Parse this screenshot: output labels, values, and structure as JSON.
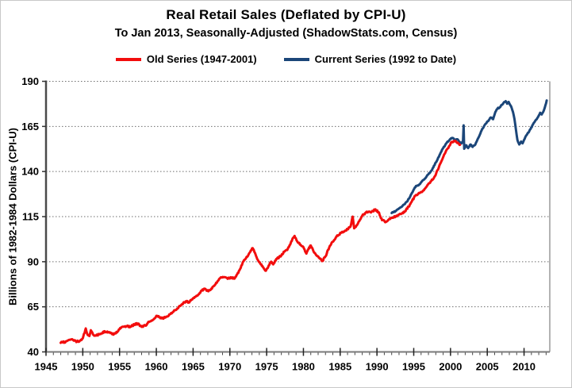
{
  "header": {
    "title": "Real Retail Sales (Deflated by CPI-U)",
    "subtitle": "To Jan 2013, Seasonally-Adjusted (ShadowStats.com, Census)"
  },
  "legend": {
    "items": [
      {
        "label": "Old Series (1947-2001)",
        "color": "#f20d0d"
      },
      {
        "label": "Current Series (1992 to Date)",
        "color": "#1b4679"
      }
    ]
  },
  "chart_data": {
    "type": "line",
    "title": "Real Retail Sales (Deflated by CPI-U)",
    "subtitle": "To Jan 2013, Seasonally-Adjusted (ShadowStats.com, Census)",
    "xlabel": "",
    "ylabel": "Billions of 1982-1984 Dollars (CPI-U)",
    "xlim": [
      1945,
      2013.5
    ],
    "ylim": [
      40,
      190
    ],
    "xticks": [
      1945,
      1950,
      1955,
      1960,
      1965,
      1970,
      1975,
      1980,
      1985,
      1990,
      1995,
      2000,
      2005,
      2010
    ],
    "yticks": [
      40,
      65,
      90,
      115,
      140,
      165,
      190
    ],
    "grid": "horizontal-dotted",
    "legend_position": "top",
    "series": [
      {
        "name": "Current Series (1992 to Date)",
        "color": "#1b4679",
        "points": [
          [
            1992.0,
            117.0
          ],
          [
            1992.3,
            117.6
          ],
          [
            1992.6,
            118.2
          ],
          [
            1993.0,
            119.5
          ],
          [
            1993.4,
            120.6
          ],
          [
            1993.8,
            122.0
          ],
          [
            1994.2,
            124.0
          ],
          [
            1994.6,
            127.0
          ],
          [
            1995.0,
            130.0
          ],
          [
            1995.3,
            132.0
          ],
          [
            1995.7,
            132.6
          ],
          [
            1996.0,
            134.0
          ],
          [
            1996.5,
            136.0
          ],
          [
            1997.0,
            138.5
          ],
          [
            1997.5,
            141.0
          ],
          [
            1998.0,
            145.0
          ],
          [
            1998.5,
            149.0
          ],
          [
            1999.0,
            153.0
          ],
          [
            1999.5,
            156.0
          ],
          [
            2000.0,
            158.0
          ],
          [
            2000.3,
            158.6
          ],
          [
            2000.6,
            157.6
          ],
          [
            2000.9,
            157.9
          ],
          [
            2001.2,
            156.6
          ],
          [
            2001.5,
            155.6
          ],
          [
            2001.7,
            157.0
          ],
          [
            2001.78,
            165.6
          ],
          [
            2001.86,
            152.6
          ],
          [
            2002.1,
            154.6
          ],
          [
            2002.4,
            153.0
          ],
          [
            2002.7,
            155.0
          ],
          [
            2003.0,
            153.6
          ],
          [
            2003.3,
            154.6
          ],
          [
            2003.6,
            157.0
          ],
          [
            2004.0,
            160.5
          ],
          [
            2004.3,
            163.5
          ],
          [
            2004.6,
            165.5
          ],
          [
            2004.9,
            167.0
          ],
          [
            2005.2,
            168.5
          ],
          [
            2005.5,
            170.0
          ],
          [
            2005.8,
            169.0
          ],
          [
            2006.1,
            173.0
          ],
          [
            2006.4,
            175.0
          ],
          [
            2006.7,
            175.6
          ],
          [
            2007.0,
            177.0
          ],
          [
            2007.3,
            178.5
          ],
          [
            2007.5,
            179.0
          ],
          [
            2007.7,
            177.6
          ],
          [
            2007.9,
            178.6
          ],
          [
            2008.1,
            177.0
          ],
          [
            2008.3,
            175.5
          ],
          [
            2008.5,
            173.0
          ],
          [
            2008.7,
            169.0
          ],
          [
            2008.9,
            163.0
          ],
          [
            2009.1,
            157.5
          ],
          [
            2009.35,
            155.0
          ],
          [
            2009.6,
            156.6
          ],
          [
            2009.8,
            155.6
          ],
          [
            2010.0,
            157.6
          ],
          [
            2010.3,
            160.0
          ],
          [
            2010.6,
            161.6
          ],
          [
            2010.9,
            163.6
          ],
          [
            2011.2,
            166.0
          ],
          [
            2011.5,
            168.0
          ],
          [
            2011.8,
            169.6
          ],
          [
            2012.0,
            171.0
          ],
          [
            2012.2,
            172.6
          ],
          [
            2012.4,
            171.6
          ],
          [
            2012.7,
            174.0
          ],
          [
            2012.9,
            176.6
          ],
          [
            2013.08,
            179.4
          ]
        ]
      },
      {
        "name": "Old Series (1947-2001)",
        "color": "#f20d0d",
        "points": [
          [
            1947.0,
            45.0
          ],
          [
            1947.3,
            45.6
          ],
          [
            1947.6,
            45.2
          ],
          [
            1948.0,
            46.4
          ],
          [
            1948.4,
            46.9
          ],
          [
            1948.8,
            46.2
          ],
          [
            1949.2,
            45.8
          ],
          [
            1949.6,
            46.2
          ],
          [
            1950.0,
            47.6
          ],
          [
            1950.4,
            53.0
          ],
          [
            1950.6,
            50.0
          ],
          [
            1950.9,
            48.8
          ],
          [
            1951.1,
            52.0
          ],
          [
            1951.4,
            49.6
          ],
          [
            1951.8,
            49.0
          ],
          [
            1952.2,
            49.8
          ],
          [
            1952.6,
            50.3
          ],
          [
            1953.0,
            51.4
          ],
          [
            1953.5,
            51.0
          ],
          [
            1954.0,
            49.8
          ],
          [
            1954.5,
            50.3
          ],
          [
            1955.0,
            52.6
          ],
          [
            1955.5,
            54.0
          ],
          [
            1956.0,
            54.2
          ],
          [
            1956.5,
            54.0
          ],
          [
            1957.0,
            55.2
          ],
          [
            1957.5,
            55.6
          ],
          [
            1958.0,
            53.9
          ],
          [
            1958.5,
            54.6
          ],
          [
            1959.0,
            56.6
          ],
          [
            1959.5,
            57.6
          ],
          [
            1960.0,
            60.0
          ],
          [
            1960.4,
            59.2
          ],
          [
            1960.8,
            58.6
          ],
          [
            1961.2,
            59.0
          ],
          [
            1961.6,
            59.8
          ],
          [
            1962.0,
            61.5
          ],
          [
            1962.5,
            63.0
          ],
          [
            1963.0,
            64.5
          ],
          [
            1963.5,
            66.5
          ],
          [
            1964.0,
            68.0
          ],
          [
            1964.4,
            67.5
          ],
          [
            1964.8,
            69.0
          ],
          [
            1965.3,
            70.5
          ],
          [
            1965.8,
            72.0
          ],
          [
            1966.2,
            74.0
          ],
          [
            1966.6,
            75.0
          ],
          [
            1967.0,
            73.8
          ],
          [
            1967.4,
            74.5
          ],
          [
            1967.8,
            76.5
          ],
          [
            1968.3,
            79.0
          ],
          [
            1968.7,
            81.0
          ],
          [
            1969.2,
            81.5
          ],
          [
            1969.7,
            80.5
          ],
          [
            1970.2,
            81.2
          ],
          [
            1970.7,
            81.0
          ],
          [
            1971.0,
            83.0
          ],
          [
            1971.4,
            86.0
          ],
          [
            1971.8,
            90.0
          ],
          [
            1972.2,
            92.0
          ],
          [
            1972.6,
            94.5
          ],
          [
            1973.1,
            97.5
          ],
          [
            1973.4,
            95.0
          ],
          [
            1973.8,
            91.0
          ],
          [
            1974.2,
            88.5
          ],
          [
            1974.5,
            87.0
          ],
          [
            1974.9,
            85.0
          ],
          [
            1975.2,
            87.0
          ],
          [
            1975.6,
            90.0
          ],
          [
            1975.9,
            88.5
          ],
          [
            1976.3,
            91.5
          ],
          [
            1976.7,
            92.5
          ],
          [
            1977.0,
            93.5
          ],
          [
            1977.4,
            95.5
          ],
          [
            1977.8,
            96.5
          ],
          [
            1978.2,
            99.5
          ],
          [
            1978.5,
            102.5
          ],
          [
            1978.8,
            104.3
          ],
          [
            1979.2,
            101.0
          ],
          [
            1979.6,
            99.5
          ],
          [
            1980.0,
            98.0
          ],
          [
            1980.4,
            94.5
          ],
          [
            1980.7,
            97.0
          ],
          [
            1981.0,
            99.0
          ],
          [
            1981.4,
            95.5
          ],
          [
            1981.8,
            93.5
          ],
          [
            1982.2,
            92.0
          ],
          [
            1982.6,
            90.4
          ],
          [
            1983.0,
            93.0
          ],
          [
            1983.6,
            98.8
          ],
          [
            1984.0,
            101.0
          ],
          [
            1984.5,
            104.0
          ],
          [
            1985.1,
            106.0
          ],
          [
            1985.5,
            106.5
          ],
          [
            1986.0,
            108.0
          ],
          [
            1986.4,
            109.5
          ],
          [
            1986.7,
            115.0
          ],
          [
            1986.9,
            108.5
          ],
          [
            1987.2,
            110.0
          ],
          [
            1987.6,
            112.5
          ],
          [
            1988.0,
            115.5
          ],
          [
            1988.4,
            117.0
          ],
          [
            1988.8,
            117.5
          ],
          [
            1989.2,
            117.3
          ],
          [
            1989.8,
            119.0
          ],
          [
            1990.2,
            117.5
          ],
          [
            1990.7,
            113.0
          ],
          [
            1991.2,
            112.0
          ],
          [
            1991.8,
            113.7
          ],
          [
            1992.3,
            114.7
          ],
          [
            1992.8,
            115.5
          ],
          [
            1993.3,
            116.5
          ],
          [
            1993.8,
            118.0
          ],
          [
            1994.3,
            120.5
          ],
          [
            1994.8,
            124.0
          ],
          [
            1995.3,
            127.0
          ],
          [
            1995.8,
            128.0
          ],
          [
            1996.3,
            129.5
          ],
          [
            1996.8,
            132.0
          ],
          [
            1997.3,
            134.5
          ],
          [
            1997.8,
            137.0
          ],
          [
            1998.3,
            141.0
          ],
          [
            1998.8,
            146.0
          ],
          [
            1999.3,
            150.5
          ],
          [
            1999.8,
            154.0
          ],
          [
            2000.2,
            156.5
          ],
          [
            2000.6,
            156.8
          ],
          [
            2001.0,
            156.0
          ],
          [
            2001.3,
            154.8
          ]
        ]
      }
    ]
  }
}
